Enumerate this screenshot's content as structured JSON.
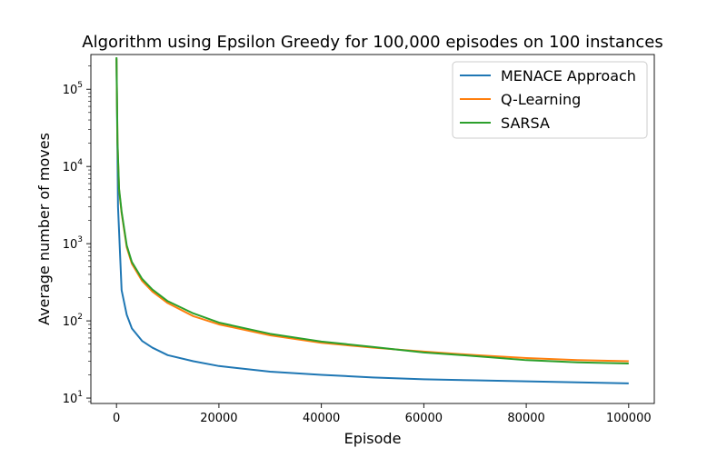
{
  "chart_data": {
    "type": "line",
    "title": "Algorithm using Epsilon Greedy for 100,000 episodes on 100 instances",
    "xlabel": "Episode",
    "ylabel": "Average number of moves",
    "xlim": [
      -5000,
      105000
    ],
    "ylim_log10": [
      0.93,
      5.45
    ],
    "y_scale": "log",
    "x_ticks": [
      0,
      20000,
      40000,
      60000,
      80000,
      100000
    ],
    "x_tick_labels": [
      "0",
      "20000",
      "40000",
      "60000",
      "80000",
      "100000"
    ],
    "y_ticks_log10": [
      1,
      2,
      3,
      4,
      5
    ],
    "y_tick_bases": [
      "10",
      "10",
      "10",
      "10",
      "10"
    ],
    "y_tick_exponents": [
      "1",
      "2",
      "3",
      "4",
      "5"
    ],
    "grid": false,
    "legend_position": "top-right",
    "series": [
      {
        "name": "MENACE Approach",
        "color": "#1f77b4",
        "x": [
          0,
          300,
          1000,
          2000,
          3000,
          5000,
          7000,
          10000,
          15000,
          20000,
          30000,
          40000,
          50000,
          60000,
          70000,
          80000,
          90000,
          100000
        ],
        "y": [
          250000,
          3000,
          250,
          120,
          80,
          55,
          45,
          36,
          30,
          26,
          22,
          20,
          18.5,
          17.5,
          17,
          16.5,
          16,
          15.5
        ]
      },
      {
        "name": "Q-Learning",
        "color": "#ff7f0e",
        "x": [
          0,
          200,
          500,
          1000,
          2000,
          3000,
          5000,
          7000,
          10000,
          15000,
          20000,
          30000,
          40000,
          50000,
          60000,
          70000,
          80000,
          90000,
          100000
        ],
        "y": [
          250000,
          20000,
          5000,
          2500,
          900,
          550,
          330,
          240,
          170,
          115,
          90,
          65,
          52,
          45,
          40,
          36,
          33,
          31,
          30
        ]
      },
      {
        "name": "SARSA",
        "color": "#2ca02c",
        "x": [
          0,
          200,
          500,
          1000,
          2000,
          3000,
          5000,
          7000,
          10000,
          15000,
          20000,
          30000,
          40000,
          50000,
          60000,
          70000,
          80000,
          90000,
          100000
        ],
        "y": [
          260000,
          21000,
          5200,
          2600,
          950,
          580,
          350,
          255,
          180,
          125,
          95,
          68,
          54,
          46,
          39,
          35,
          31,
          29,
          28
        ]
      }
    ]
  }
}
